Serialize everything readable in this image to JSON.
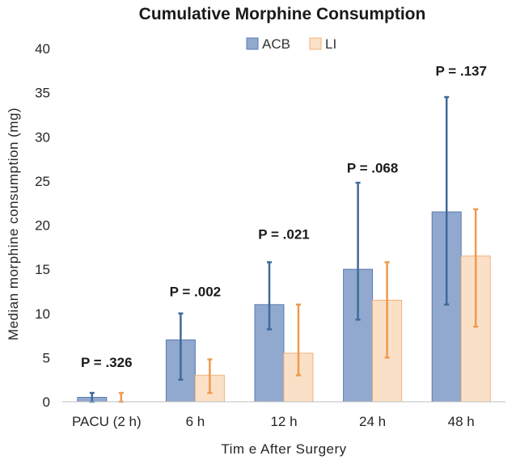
{
  "chart_data": {
    "type": "bar",
    "title": "Cumulative Morphine Consumption",
    "xlabel": "Tim e After Surgery",
    "ylabel": "Median morphine consumption (mg)",
    "ylim": [
      0,
      40
    ],
    "yticks": [
      0,
      5,
      10,
      15,
      20,
      25,
      30,
      35,
      40
    ],
    "categories": [
      "PACU (2 h)",
      "6  h",
      "12  h",
      "24  h",
      "48  h"
    ],
    "series": [
      {
        "name": "ACB",
        "color": "#91a8cf",
        "edge": "#5b7bb0",
        "error_color": "#3f6a99",
        "values": [
          0.5,
          7,
          11,
          15,
          21.5
        ],
        "error_low": [
          0,
          2.5,
          8.2,
          9.3,
          11
        ],
        "error_high": [
          1,
          10,
          15.8,
          24.8,
          34.5
        ]
      },
      {
        "name": "LI",
        "color": "#fbe0c8",
        "edge": "#f0b27a",
        "error_color": "#ee9a4d",
        "values": [
          0,
          3,
          5.5,
          11.5,
          16.5
        ],
        "error_low": [
          0,
          1,
          3,
          5,
          8.5
        ],
        "error_high": [
          1,
          4.8,
          11,
          15.8,
          21.8
        ]
      }
    ],
    "annotations": [
      "P = .326",
      "P = .002",
      "P = .021",
      "P = .068",
      "P = .137"
    ],
    "annotation_y": [
      4.5,
      12.5,
      19,
      26.5,
      37.5
    ],
    "legend": "top"
  }
}
